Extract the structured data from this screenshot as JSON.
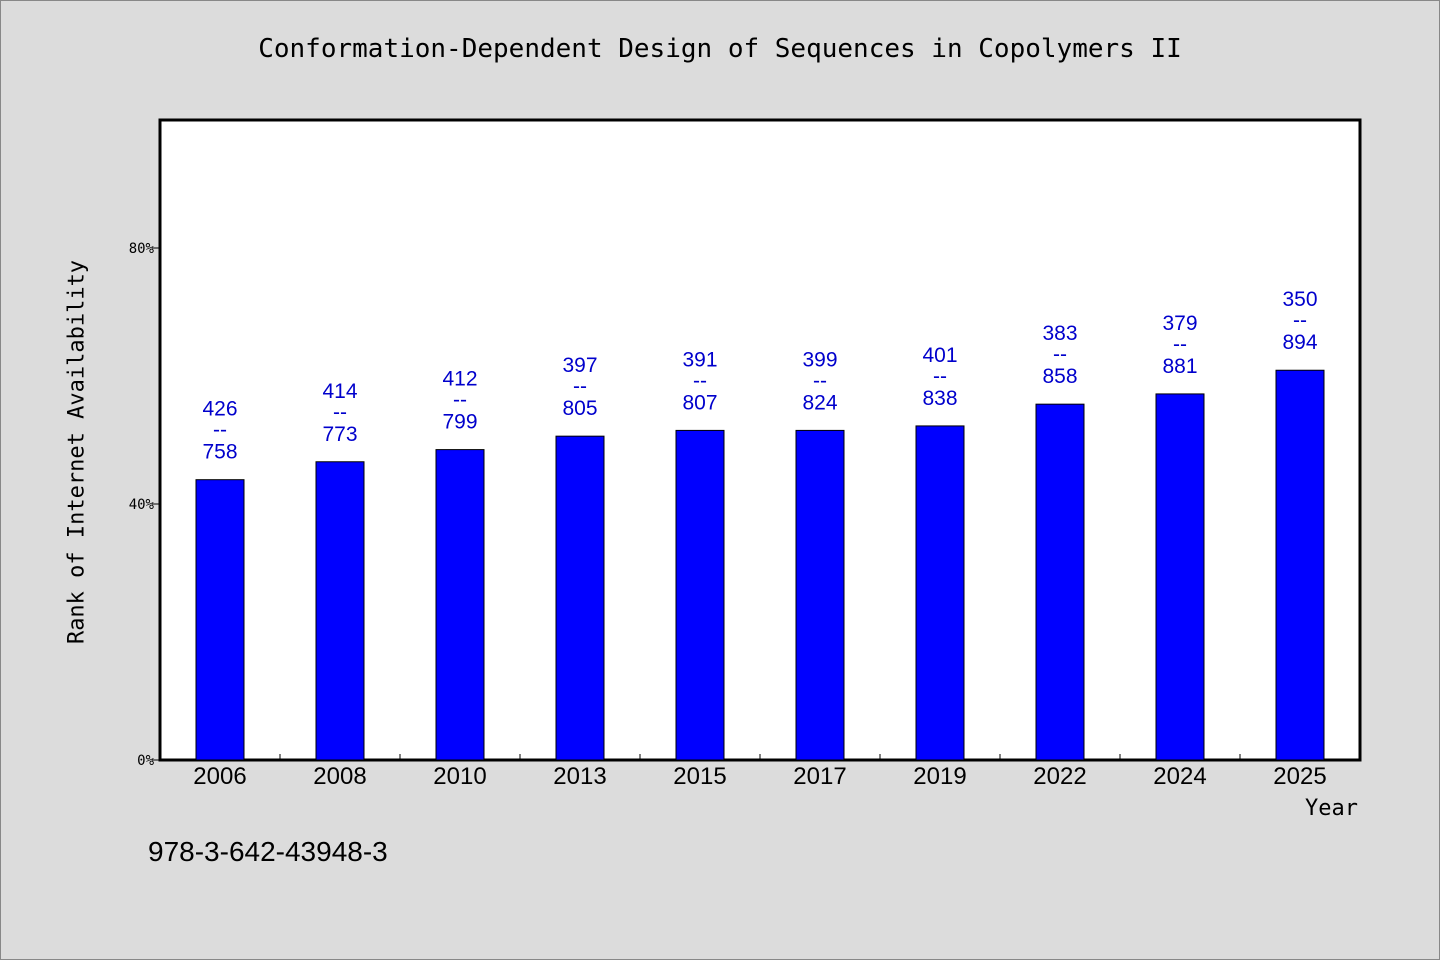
{
  "title": "Conformation-Dependent Design of Sequences in Copolymers II",
  "footnote": "978-3-642-43948-3",
  "colors": {
    "background": "#dcdcdc",
    "plot_background": "#ffffff",
    "bar": "#0000ff",
    "bar_label": "#0000cc"
  },
  "chart_data": {
    "type": "bar",
    "title": "Conformation-Dependent Design of Sequences in Copolymers II",
    "xlabel": "Year",
    "ylabel": "Rank of Internet Availability",
    "categories": [
      "2006",
      "2008",
      "2010",
      "2013",
      "2015",
      "2017",
      "2019",
      "2022",
      "2024",
      "2025"
    ],
    "values": [
      43.8,
      46.6,
      48.5,
      50.6,
      51.5,
      51.5,
      52.2,
      55.6,
      57.2,
      60.9
    ],
    "labels_top": [
      "426",
      "414",
      "412",
      "397",
      "391",
      "399",
      "401",
      "383",
      "379",
      "350"
    ],
    "labels_sep": "--",
    "labels_bottom": [
      "758",
      "773",
      "799",
      "805",
      "807",
      "824",
      "838",
      "858",
      "881",
      "894"
    ],
    "ylim": [
      0,
      100
    ],
    "yticks": [
      0,
      40,
      80
    ],
    "ytick_labels": [
      "0%",
      "40%",
      "80%"
    ],
    "grid": false,
    "legend": "none"
  }
}
